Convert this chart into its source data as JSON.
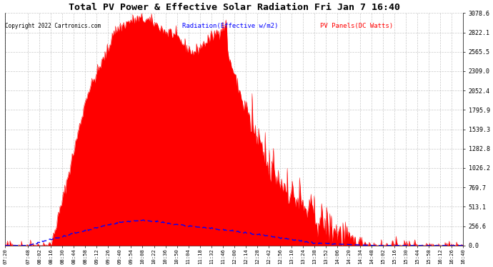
{
  "title": "Total PV Power & Effective Solar Radiation Fri Jan 7 16:40",
  "copyright": "Copyright 2022 Cartronics.com",
  "legend_radiation": "Radiation(Effective w/m2)",
  "legend_pv": "PV Panels(DC Watts)",
  "ymax": 3078.6,
  "yticks": [
    0.0,
    256.6,
    513.1,
    769.7,
    1026.2,
    1282.8,
    1539.3,
    1795.9,
    2052.4,
    2309.0,
    2565.5,
    2822.1,
    3078.6
  ],
  "background_color": "#ffffff",
  "grid_color": "#bbbbbb",
  "fill_color": "#ff0000",
  "line_color_radiation": "#0000ff",
  "title_color": "#000000",
  "copyright_color": "#000000",
  "legend_radiation_color": "#0000ff",
  "legend_pv_color": "#ff0000",
  "time_labels": [
    "07:20",
    "07:48",
    "08:02",
    "08:16",
    "08:30",
    "08:44",
    "08:58",
    "09:12",
    "09:26",
    "09:40",
    "09:54",
    "10:08",
    "10:22",
    "10:36",
    "10:50",
    "11:04",
    "11:18",
    "11:32",
    "11:46",
    "12:00",
    "12:14",
    "12:28",
    "12:42",
    "12:56",
    "13:10",
    "13:24",
    "13:38",
    "13:52",
    "14:06",
    "14:20",
    "14:34",
    "14:48",
    "15:02",
    "15:16",
    "15:30",
    "15:44",
    "15:58",
    "16:12",
    "16:26",
    "16:40"
  ]
}
